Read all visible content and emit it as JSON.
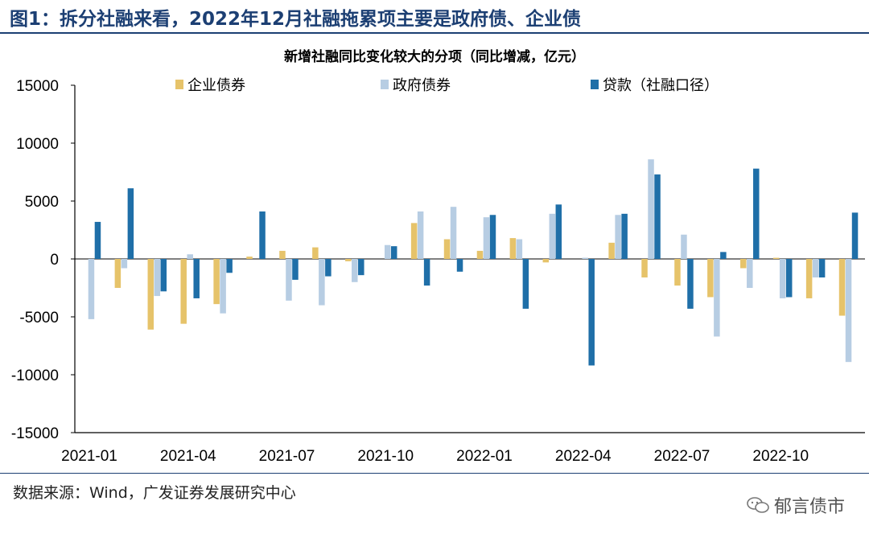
{
  "figure": {
    "title": "图1：拆分社融来看，2022年12月社融拖累项主要是政府债、企业债",
    "source": "数据来源：Wind，广发证券发展研究中心",
    "watermark": "郁言债市"
  },
  "chart_data": {
    "type": "bar",
    "title": "新增社融同比变化较大的分项（同比增减，亿元）",
    "xlabel": "",
    "ylabel": "",
    "ylim": [
      -15000,
      15000
    ],
    "yticks": [
      15000,
      10000,
      5000,
      0,
      -5000,
      -10000,
      -15000
    ],
    "ytick_labels": [
      "15000",
      "10000",
      "5000",
      "0",
      "-5000",
      "-10000",
      "-15000"
    ],
    "categories": [
      "2021-01",
      "2021-02",
      "2021-03",
      "2021-04",
      "2021-05",
      "2021-06",
      "2021-07",
      "2021-08",
      "2021-09",
      "2021-10",
      "2021-11",
      "2021-12",
      "2022-01",
      "2022-02",
      "2022-03",
      "2022-04",
      "2022-05",
      "2022-06",
      "2022-07",
      "2022-08",
      "2022-09",
      "2022-10",
      "2022-11",
      "2022-12"
    ],
    "xtick_labels": [
      "2021-01",
      "",
      "",
      "2021-04",
      "",
      "",
      "2021-07",
      "",
      "",
      "2021-10",
      "",
      "",
      "2022-01",
      "",
      "",
      "2022-04",
      "",
      "",
      "2022-07",
      "",
      "",
      "2022-10",
      "",
      ""
    ],
    "legend_position": "top",
    "series": [
      {
        "name": "企业债券",
        "color": "#e6c36a",
        "values": [
          0,
          -2500,
          -6100,
          -5600,
          -3900,
          200,
          700,
          1000,
          -200,
          0,
          3100,
          1700,
          700,
          1800,
          -300,
          0,
          1400,
          -1600,
          -2300,
          -3300,
          -800,
          100,
          -3400,
          -4900
        ]
      },
      {
        "name": "政府债券",
        "color": "#b7cde3",
        "values": [
          -5200,
          -800,
          -3200,
          400,
          -4700,
          0,
          -3600,
          -4000,
          -2000,
          1200,
          4100,
          4500,
          3600,
          1700,
          3900,
          100,
          3800,
          8600,
          2100,
          -6700,
          -2500,
          -3400,
          -1600,
          -8900
        ]
      },
      {
        "name": "贷款（社融口径）",
        "color": "#1f6fa8",
        "values": [
          3200,
          6100,
          -2800,
          -3400,
          -1200,
          4100,
          -1800,
          -1500,
          -1400,
          1100,
          -2300,
          -1100,
          3800,
          -4300,
          4700,
          -9200,
          3900,
          7300,
          -4300,
          600,
          7800,
          -3300,
          -1600,
          4000
        ]
      }
    ]
  }
}
